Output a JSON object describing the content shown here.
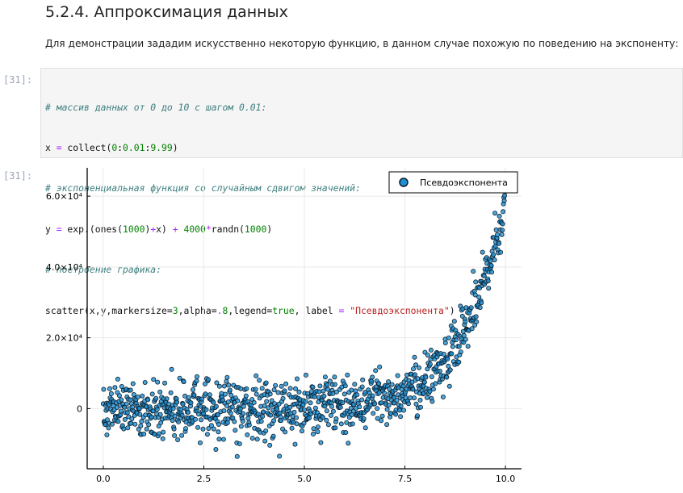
{
  "heading": "5.2.4. Аппроксимация данных",
  "intro": "Для демонстрации зададим искусственно некоторую функцию, в данном случае похожую по поведению на экспоненту:",
  "cells": {
    "in_prompt": "[31]:",
    "out_prompt": "[31]:",
    "code_lines": [
      "# массив данных от 0 до 10 с шагом 0.01:",
      "x = collect(0:0.01:9.99)",
      "# экспоненциальная функция со случайным сдвигом значений:",
      "y = exp.(ones(1000)+x) + 4000*randn(1000)",
      "# построение графика:",
      "scatter(x,y,markersize=3,alpha=.8,legend=true, label = \"Псевдоэкспонента\")"
    ]
  },
  "colors": {
    "marker_fill": "#1f8fd1",
    "marker_stroke": "#0d1f2d",
    "grid": "#e9e9e9",
    "comment": "#408080",
    "string": "#ba2121"
  },
  "chart_data": {
    "type": "scatter",
    "x_range": [
      0,
      9.99
    ],
    "x_step": 0.01,
    "function": "exp(1+x) + 4000*noise",
    "noise_std": 4000,
    "xlim": [
      -0.4,
      10.4
    ],
    "ylim": [
      -17000,
      68000
    ],
    "x_ticks": [
      0,
      2.5,
      5,
      7.5,
      10
    ],
    "x_tick_labels": [
      "0.0",
      "2.5",
      "5.0",
      "7.5",
      "10.0"
    ],
    "y_ticks": [
      0,
      20000,
      40000,
      60000
    ],
    "y_tick_labels": [
      "0",
      "2.0×10⁴",
      "4.0×10⁴",
      "6.0×10⁴"
    ],
    "series": [
      {
        "name": "Псевдоэкспонента",
        "marker": "circle",
        "markersize": 3,
        "alpha": 0.8
      }
    ],
    "legend_position": "top-right",
    "grid": true
  }
}
